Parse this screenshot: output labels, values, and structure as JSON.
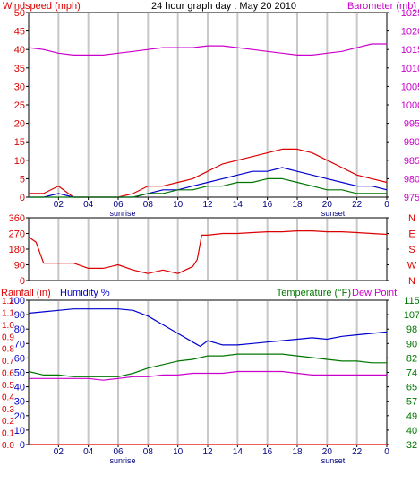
{
  "title": "24 hour graph day : May 20 2010",
  "colors": {
    "red": "#dd0000",
    "blue": "#0000cc",
    "green": "#007700",
    "magenta": "#cc00cc",
    "grid": "#c8c8c8",
    "border": "#000000"
  },
  "x_axis": {
    "ticks": [
      "02",
      "04",
      "06",
      "08",
      "10",
      "12",
      "14",
      "16",
      "18",
      "20",
      "22",
      "0"
    ],
    "sunrise_label": "sunrise",
    "sunset_label": "sunset",
    "sunrise_hour": 6.3,
    "sunset_hour": 20.4
  },
  "chart_data": [
    {
      "type": "line",
      "panel": "top",
      "left_axis_label": "Windspeed (mph)",
      "right_axis_label": "Barometer (mb)",
      "left_ticks": [
        "0",
        "5",
        "10",
        "15",
        "20",
        "25",
        "30",
        "35",
        "40",
        "45",
        "50"
      ],
      "right_ticks": [
        "975",
        "980",
        "985",
        "990",
        "995",
        "1000",
        "1005",
        "1010",
        "1015",
        "1020",
        "1025"
      ],
      "ylim_left": [
        0,
        50
      ],
      "ylim_right": [
        975,
        1025
      ],
      "x": [
        0,
        1,
        2,
        3,
        4,
        5,
        6,
        7,
        8,
        9,
        10,
        11,
        12,
        13,
        14,
        15,
        16,
        17,
        18,
        19,
        20,
        21,
        22,
        23,
        24
      ],
      "series": [
        {
          "axis": "right",
          "color": "magenta",
          "values": [
            1015.5,
            1015,
            1014,
            1013.5,
            1013.5,
            1013.5,
            1014,
            1014.5,
            1015,
            1015.5,
            1015.5,
            1015.5,
            1016,
            1016,
            1015.5,
            1015,
            1014.5,
            1014,
            1013.5,
            1013.5,
            1014,
            1014.5,
            1015.5,
            1016.5,
            1016.5
          ]
        },
        {
          "axis": "left",
          "color": "red",
          "values": [
            1,
            1,
            3,
            0,
            0,
            0,
            0,
            1,
            3,
            3,
            4,
            5,
            7,
            9,
            10,
            11,
            12,
            13,
            13,
            12,
            10,
            8,
            6,
            5,
            4
          ]
        },
        {
          "axis": "left",
          "color": "blue",
          "values": [
            0,
            0,
            1,
            0,
            0,
            0,
            0,
            0,
            1,
            2,
            2,
            3,
            4,
            5,
            6,
            7,
            7,
            8,
            7,
            6,
            5,
            4,
            3,
            3,
            2
          ]
        },
        {
          "axis": "left",
          "color": "green",
          "values": [
            0,
            0,
            0,
            0,
            0,
            0,
            0,
            0,
            1,
            1,
            2,
            2,
            3,
            3,
            4,
            4,
            5,
            5,
            4,
            3,
            2,
            2,
            1,
            1,
            1
          ]
        }
      ]
    },
    {
      "type": "line",
      "panel": "middle",
      "left_ticks": [
        "0",
        "90",
        "180",
        "270",
        "360"
      ],
      "right_ticks": [
        "N",
        "W",
        "S",
        "E",
        "N"
      ],
      "ylim_left": [
        0,
        360
      ],
      "x": [
        0,
        0.5,
        1,
        2,
        3,
        4,
        5,
        6,
        7,
        8,
        9,
        10,
        11,
        11.3,
        11.6,
        12,
        13,
        14,
        15,
        16,
        17,
        18,
        19,
        20,
        21,
        22,
        23,
        24
      ],
      "series": [
        {
          "axis": "left",
          "color": "red",
          "values": [
            250,
            220,
            100,
            100,
            100,
            70,
            70,
            90,
            60,
            40,
            60,
            40,
            80,
            120,
            260,
            260,
            270,
            270,
            275,
            280,
            280,
            285,
            285,
            280,
            280,
            275,
            270,
            265
          ]
        }
      ]
    },
    {
      "type": "line",
      "panel": "bottom",
      "left_label_rain": "Rainfall (in)",
      "left_label_humidity": "Humidity %",
      "right_label_temp": "Temperature (°F)",
      "right_label_dew": "Dew Point",
      "left_ticks_humidity": [
        "0",
        "10",
        "20",
        "30",
        "40",
        "50",
        "60",
        "70",
        "80",
        "90",
        "100"
      ],
      "left_ticks_rain": [
        "0.0",
        "0.1",
        "0.2",
        "0.3",
        "0.4",
        "0.5",
        "0.6",
        "0.7",
        "0.8",
        "0.9",
        "1.0",
        "1.1",
        "1.2"
      ],
      "right_ticks": [
        "32",
        "40",
        "49",
        "57",
        "65",
        "74",
        "82",
        "90",
        "98",
        "107",
        "115"
      ],
      "ylim_left": [
        0,
        100
      ],
      "ylim_right": [
        32,
        115
      ],
      "x": [
        0,
        1,
        2,
        3,
        4,
        5,
        6,
        7,
        8,
        9,
        10,
        11,
        11.5,
        12,
        13,
        14,
        15,
        16,
        17,
        18,
        19,
        20,
        21,
        22,
        23,
        24
      ],
      "series": [
        {
          "name": "Humidity %",
          "axis": "left",
          "color": "blue",
          "values": [
            91,
            92,
            93,
            94,
            94,
            94,
            94,
            93,
            89,
            83,
            77,
            71,
            68,
            72,
            69,
            69,
            70,
            71,
            72,
            73,
            74,
            73,
            75,
            76,
            77,
            78
          ]
        },
        {
          "name": "Temperature (°F)",
          "axis": "right",
          "color": "green",
          "values": [
            74,
            72,
            72,
            71,
            71,
            71,
            71,
            73,
            76,
            78,
            80,
            81,
            82,
            83,
            83,
            84,
            84,
            84,
            84,
            83,
            82,
            81,
            80,
            80,
            79,
            79
          ]
        },
        {
          "name": "Dew Point",
          "axis": "right",
          "color": "magenta",
          "values": [
            70,
            70,
            70,
            70,
            70,
            69,
            70,
            71,
            71,
            72,
            72,
            73,
            73,
            73,
            73,
            74,
            74,
            74,
            74,
            73,
            72,
            72,
            72,
            72,
            72,
            72
          ]
        },
        {
          "name": "Rainfall (in)",
          "axis": "left",
          "color": "red",
          "values": [
            0,
            0,
            0,
            0,
            0,
            0,
            0,
            0,
            0,
            0,
            0,
            0,
            0,
            0,
            0,
            0,
            0,
            0,
            0,
            0,
            0,
            0,
            0,
            0,
            0,
            0
          ]
        }
      ]
    }
  ]
}
